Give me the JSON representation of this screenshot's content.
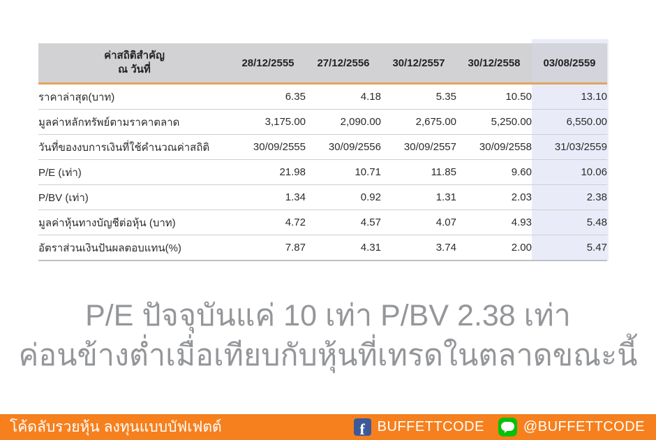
{
  "table": {
    "header": {
      "title_line1": "ค่าสถิติสำคัญ",
      "title_line2": "ณ วันที่",
      "columns": [
        "28/12/2555",
        "27/12/2556",
        "30/12/2557",
        "30/12/2558",
        "03/08/2559"
      ]
    },
    "rows": [
      {
        "label": "ราคาล่าสุด(บาท)",
        "values": [
          "6.35",
          "4.18",
          "5.35",
          "10.50",
          "13.10"
        ]
      },
      {
        "label": "มูลค่าหลักทรัพย์ตามราคาตลาด",
        "values": [
          "3,175.00",
          "2,090.00",
          "2,675.00",
          "5,250.00",
          "6,550.00"
        ]
      },
      {
        "label": "วันที่ของงบการเงินที่ใช้คำนวณค่าสถิติ",
        "values": [
          "30/09/2555",
          "30/09/2556",
          "30/09/2557",
          "30/09/2558",
          "31/03/2559"
        ]
      },
      {
        "label": "P/E (เท่า)",
        "values": [
          "21.98",
          "10.71",
          "11.85",
          "9.60",
          "10.06"
        ]
      },
      {
        "label": "P/BV (เท่า)",
        "values": [
          "1.34",
          "0.92",
          "1.31",
          "2.03",
          "2.38"
        ]
      },
      {
        "label": "มูลค่าหุ้นทางบัญชีต่อหุ้น (บาท)",
        "values": [
          "4.72",
          "4.57",
          "4.07",
          "4.93",
          "5.48"
        ]
      },
      {
        "label": "อัตราส่วนเงินปันผลตอบแทน(%)",
        "values": [
          "7.87",
          "4.31",
          "3.74",
          "2.00",
          "5.47"
        ]
      }
    ]
  },
  "caption": {
    "line1": "P/E  ปัจจุบันแค่ 10 เท่า P/BV 2.38 เท่า",
    "line2": "ค่อนข้างต่ำเมื่อเทียบกับหุ้นที่เทรดในตลาดขณะนี้"
  },
  "footer": {
    "brand": "โค้ดลับรวยหุ้น ลงทุนแบบบัฟเฟตต์",
    "facebook_label": "BUFFETTCODE",
    "line_label": "@BUFFETTCODE"
  },
  "icons": {
    "facebook_glyph": "f"
  },
  "colors": {
    "footer_orange": "#f6801e",
    "header_grey": "#d2d2d4",
    "header_underline_orange": "#e2a55c",
    "highlight_lavender": "#e9ecf8",
    "caption_grey": "#94969a",
    "facebook_blue": "#3d5a98",
    "line_green": "#06c109"
  }
}
